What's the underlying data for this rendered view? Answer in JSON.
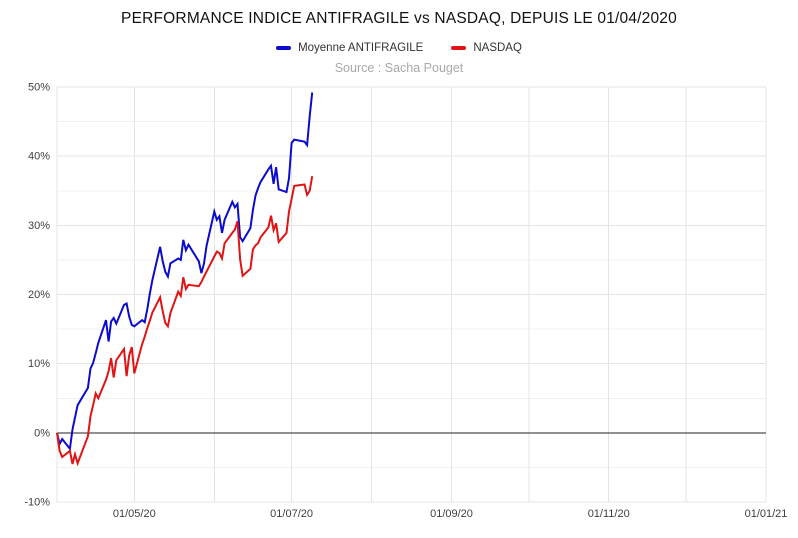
{
  "header": {
    "title": "PERFORMANCE INDICE ANTIFRAGILE vs NASDAQ, DEPUIS LE 01/04/2020",
    "source": "Source : Sacha Pouget"
  },
  "legend": [
    {
      "label": "Moyenne ANTIFRAGILE",
      "color": "#0b0bcd"
    },
    {
      "label": "NASDAQ",
      "color": "#e01414"
    }
  ],
  "colors": {
    "background": "#ffffff",
    "grid_major": "#e4e4e4",
    "grid_minor": "#f1f1f1",
    "zero_line": "#222222",
    "axis_text": "#404040",
    "title_text": "#111111",
    "source_text": "#a8a8a8"
  },
  "chart_data": {
    "type": "line",
    "title": "PERFORMANCE INDICE ANTIFRAGILE vs NASDAQ, DEPUIS LE 01/04/2020",
    "subtitle": "Source : Sacha Pouget",
    "xlabel": "",
    "ylabel": "",
    "legend_position": "top",
    "grid": true,
    "x_axis": {
      "range": [
        "2020-04-01",
        "2021-01-01"
      ],
      "gridlines": [
        "2020-04-01",
        "2020-05-01",
        "2020-06-01",
        "2020-07-01",
        "2020-08-01",
        "2020-09-01",
        "2020-10-01",
        "2020-11-01",
        "2020-12-01",
        "2021-01-01"
      ],
      "ticks": [
        {
          "date": "2020-05-01",
          "label": "01/05/20"
        },
        {
          "date": "2020-07-01",
          "label": "01/07/20"
        },
        {
          "date": "2020-09-01",
          "label": "01/09/20"
        },
        {
          "date": "2020-11-01",
          "label": "01/11/20"
        },
        {
          "date": "2021-01-01",
          "label": "01/01/21"
        }
      ]
    },
    "y_axis": {
      "range": [
        -10,
        50
      ],
      "major": [
        -10,
        0,
        10,
        20,
        30,
        40,
        50
      ],
      "minor": [
        -5,
        5,
        15,
        25,
        35,
        45
      ],
      "ticks": [
        {
          "value": -10,
          "label": "-10%"
        },
        {
          "value": 0,
          "label": "0%"
        },
        {
          "value": 10,
          "label": "10%"
        },
        {
          "value": 20,
          "label": "20%"
        },
        {
          "value": 30,
          "label": "30%"
        },
        {
          "value": 40,
          "label": "40%"
        },
        {
          "value": 50,
          "label": "50%"
        }
      ],
      "zero_line": true
    },
    "series": [
      {
        "name": "Moyenne ANTIFRAGILE",
        "color": "#0b0bcd",
        "points": [
          [
            "2020-04-01",
            0.0
          ],
          [
            "2020-04-02",
            -1.6
          ],
          [
            "2020-04-03",
            -0.9
          ],
          [
            "2020-04-06",
            -2.3
          ],
          [
            "2020-04-07",
            0.5
          ],
          [
            "2020-04-08",
            2.2
          ],
          [
            "2020-04-09",
            4.0
          ],
          [
            "2020-04-13",
            6.5
          ],
          [
            "2020-04-14",
            9.3
          ],
          [
            "2020-04-15",
            10.1
          ],
          [
            "2020-04-16",
            11.5
          ],
          [
            "2020-04-17",
            13.0
          ],
          [
            "2020-04-20",
            16.3
          ],
          [
            "2020-04-21",
            13.2
          ],
          [
            "2020-04-22",
            16.1
          ],
          [
            "2020-04-23",
            16.6
          ],
          [
            "2020-04-24",
            15.8
          ],
          [
            "2020-04-27",
            18.5
          ],
          [
            "2020-04-28",
            18.7
          ],
          [
            "2020-04-29",
            16.8
          ],
          [
            "2020-04-30",
            15.6
          ],
          [
            "2020-05-01",
            15.4
          ],
          [
            "2020-05-04",
            16.3
          ],
          [
            "2020-05-05",
            16.0
          ],
          [
            "2020-05-06",
            17.8
          ],
          [
            "2020-05-07",
            20.1
          ],
          [
            "2020-05-08",
            22.1
          ],
          [
            "2020-05-11",
            26.9
          ],
          [
            "2020-05-12",
            24.8
          ],
          [
            "2020-05-13",
            23.3
          ],
          [
            "2020-05-14",
            22.6
          ],
          [
            "2020-05-15",
            24.5
          ],
          [
            "2020-05-18",
            25.2
          ],
          [
            "2020-05-19",
            25.0
          ],
          [
            "2020-05-20",
            27.9
          ],
          [
            "2020-05-21",
            26.4
          ],
          [
            "2020-05-22",
            27.2
          ],
          [
            "2020-05-26",
            24.8
          ],
          [
            "2020-05-27",
            23.1
          ],
          [
            "2020-05-28",
            24.5
          ],
          [
            "2020-05-29",
            27.0
          ],
          [
            "2020-06-01",
            32.0
          ],
          [
            "2020-06-02",
            30.8
          ],
          [
            "2020-06-03",
            31.3
          ],
          [
            "2020-06-04",
            28.9
          ],
          [
            "2020-06-05",
            30.8
          ],
          [
            "2020-06-08",
            33.4
          ],
          [
            "2020-06-09",
            32.6
          ],
          [
            "2020-06-10",
            33.1
          ],
          [
            "2020-06-11",
            28.3
          ],
          [
            "2020-06-12",
            27.7
          ],
          [
            "2020-06-15",
            29.6
          ],
          [
            "2020-06-16",
            32.2
          ],
          [
            "2020-06-17",
            34.3
          ],
          [
            "2020-06-18",
            35.4
          ],
          [
            "2020-06-19",
            36.3
          ],
          [
            "2020-06-22",
            38.1
          ],
          [
            "2020-06-23",
            38.6
          ],
          [
            "2020-06-24",
            36.0
          ],
          [
            "2020-06-25",
            38.4
          ],
          [
            "2020-06-26",
            35.2
          ],
          [
            "2020-06-29",
            34.8
          ],
          [
            "2020-06-30",
            36.8
          ],
          [
            "2020-07-01",
            41.9
          ],
          [
            "2020-07-02",
            42.4
          ],
          [
            "2020-07-06",
            42.1
          ],
          [
            "2020-07-07",
            41.6
          ],
          [
            "2020-07-08",
            45.8
          ],
          [
            "2020-07-09",
            49.2
          ]
        ]
      },
      {
        "name": "NASDAQ",
        "color": "#e01414",
        "points": [
          [
            "2020-04-01",
            0.0
          ],
          [
            "2020-04-02",
            -2.6
          ],
          [
            "2020-04-03",
            -3.5
          ],
          [
            "2020-04-06",
            -2.6
          ],
          [
            "2020-04-07",
            -4.5
          ],
          [
            "2020-04-08",
            -3.1
          ],
          [
            "2020-04-09",
            -4.4
          ],
          [
            "2020-04-13",
            -0.5
          ],
          [
            "2020-04-14",
            2.4
          ],
          [
            "2020-04-15",
            4.0
          ],
          [
            "2020-04-16",
            5.7
          ],
          [
            "2020-04-17",
            5.0
          ],
          [
            "2020-04-20",
            7.7
          ],
          [
            "2020-04-21",
            8.9
          ],
          [
            "2020-04-22",
            10.8
          ],
          [
            "2020-04-23",
            8.0
          ],
          [
            "2020-04-24",
            10.5
          ],
          [
            "2020-04-27",
            12.1
          ],
          [
            "2020-04-28",
            8.2
          ],
          [
            "2020-04-29",
            11.2
          ],
          [
            "2020-04-30",
            12.4
          ],
          [
            "2020-05-01",
            8.6
          ],
          [
            "2020-05-04",
            12.8
          ],
          [
            "2020-05-05",
            13.9
          ],
          [
            "2020-05-06",
            15.1
          ],
          [
            "2020-05-07",
            16.2
          ],
          [
            "2020-05-08",
            17.4
          ],
          [
            "2020-05-11",
            19.6
          ],
          [
            "2020-05-12",
            17.6
          ],
          [
            "2020-05-13",
            15.9
          ],
          [
            "2020-05-14",
            15.4
          ],
          [
            "2020-05-15",
            17.3
          ],
          [
            "2020-05-18",
            20.4
          ],
          [
            "2020-05-19",
            19.8
          ],
          [
            "2020-05-20",
            22.5
          ],
          [
            "2020-05-21",
            20.8
          ],
          [
            "2020-05-22",
            21.4
          ],
          [
            "2020-05-26",
            21.2
          ],
          [
            "2020-05-27",
            21.8
          ],
          [
            "2020-05-28",
            22.6
          ],
          [
            "2020-05-29",
            23.3
          ],
          [
            "2020-06-01",
            25.5
          ],
          [
            "2020-06-02",
            26.2
          ],
          [
            "2020-06-03",
            26.0
          ],
          [
            "2020-06-04",
            25.2
          ],
          [
            "2020-06-05",
            27.4
          ],
          [
            "2020-06-08",
            28.9
          ],
          [
            "2020-06-09",
            29.4
          ],
          [
            "2020-06-10",
            30.6
          ],
          [
            "2020-06-11",
            25.1
          ],
          [
            "2020-06-12",
            22.7
          ],
          [
            "2020-06-15",
            23.7
          ],
          [
            "2020-06-16",
            26.5
          ],
          [
            "2020-06-17",
            27.1
          ],
          [
            "2020-06-18",
            27.4
          ],
          [
            "2020-06-19",
            28.3
          ],
          [
            "2020-06-22",
            29.7
          ],
          [
            "2020-06-23",
            31.4
          ],
          [
            "2020-06-24",
            29.3
          ],
          [
            "2020-06-25",
            30.3
          ],
          [
            "2020-06-26",
            27.6
          ],
          [
            "2020-06-29",
            28.9
          ],
          [
            "2020-06-30",
            32.0
          ],
          [
            "2020-07-01",
            33.8
          ],
          [
            "2020-07-02",
            35.7
          ],
          [
            "2020-07-06",
            35.9
          ],
          [
            "2020-07-07",
            34.4
          ],
          [
            "2020-07-08",
            35.0
          ],
          [
            "2020-07-09",
            37.1
          ]
        ]
      }
    ]
  }
}
